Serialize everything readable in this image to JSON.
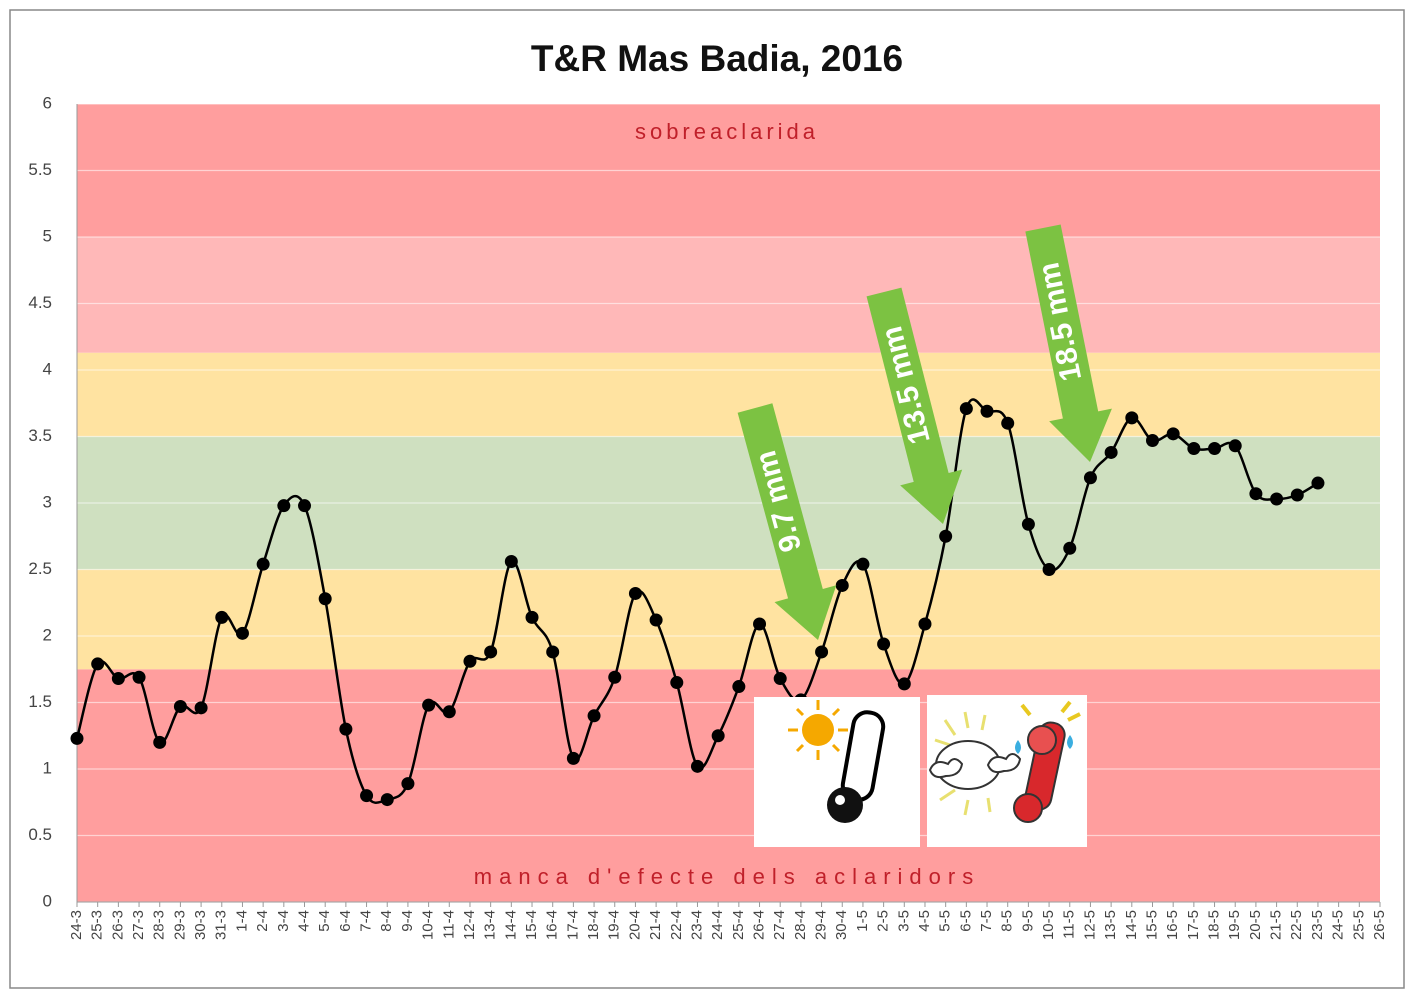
{
  "chart_data": {
    "type": "line",
    "title": "T&R Mas Badia,  2016",
    "categories": [
      "24-3",
      "25-3",
      "26-3",
      "27-3",
      "28-3",
      "29-3",
      "30-3",
      "31-3",
      "1-4",
      "2-4",
      "3-4",
      "4-4",
      "5-4",
      "6-4",
      "7-4",
      "8-4",
      "9-4",
      "10-4",
      "11-4",
      "12-4",
      "13-4",
      "14-4",
      "15-4",
      "16-4",
      "17-4",
      "18-4",
      "19-4",
      "20-4",
      "21-4",
      "22-4",
      "23-4",
      "24-4",
      "25-4",
      "26-4",
      "27-4",
      "28-4",
      "29-4",
      "30-4",
      "1-5",
      "2-5",
      "3-5",
      "4-5",
      "5-5",
      "6-5",
      "7-5",
      "8-5",
      "9-5",
      "10-5",
      "11-5",
      "12-5",
      "13-5",
      "14-5",
      "15-5",
      "16-5",
      "17-5",
      "18-5",
      "19-5",
      "20-5",
      "21-5",
      "22-5",
      "23-5",
      "24-5",
      "25-5",
      "26-5"
    ],
    "values": [
      1.23,
      1.79,
      1.68,
      1.69,
      1.2,
      1.47,
      1.46,
      2.14,
      2.02,
      2.54,
      2.98,
      2.98,
      2.28,
      1.3,
      0.8,
      0.77,
      0.89,
      1.48,
      1.43,
      1.81,
      1.88,
      2.56,
      2.14,
      1.88,
      1.08,
      1.4,
      1.69,
      2.32,
      2.12,
      1.65,
      1.02,
      1.25,
      1.62,
      2.09,
      1.68,
      1.52,
      1.88,
      2.38,
      2.54,
      1.94,
      1.64,
      2.09,
      2.75,
      3.71,
      3.69,
      3.6,
      2.84,
      2.5,
      2.66,
      3.19,
      3.38,
      3.64,
      3.47,
      3.52,
      3.41,
      3.41,
      3.43,
      3.07,
      3.03,
      3.06,
      3.15,
      null,
      null,
      null
    ],
    "color": "#000000",
    "ylim": [
      0,
      6
    ],
    "yticks": [
      0,
      0.5,
      1,
      1.5,
      2,
      2.5,
      3,
      3.5,
      4,
      4.5,
      5,
      5.5,
      6
    ],
    "grid": true,
    "bands": [
      {
        "from": 0,
        "to": 1.75,
        "color": "#ff9e9e"
      },
      {
        "from": 1.75,
        "to": 2.5,
        "color": "#ffe3a1"
      },
      {
        "from": 2.5,
        "to": 3.5,
        "color": "#cfe0c0"
      },
      {
        "from": 3.5,
        "to": 4.13,
        "color": "#ffe3a1"
      },
      {
        "from": 4.13,
        "to": 5,
        "color": "#ffb8b8"
      },
      {
        "from": 5,
        "to": 6,
        "color": "#ff9e9e"
      }
    ],
    "annotations": [
      "sobreaclarida",
      "manca d'efecte dels aclaridors",
      "9.7 mm",
      "13.5 mm",
      "18.5 mm"
    ]
  }
}
